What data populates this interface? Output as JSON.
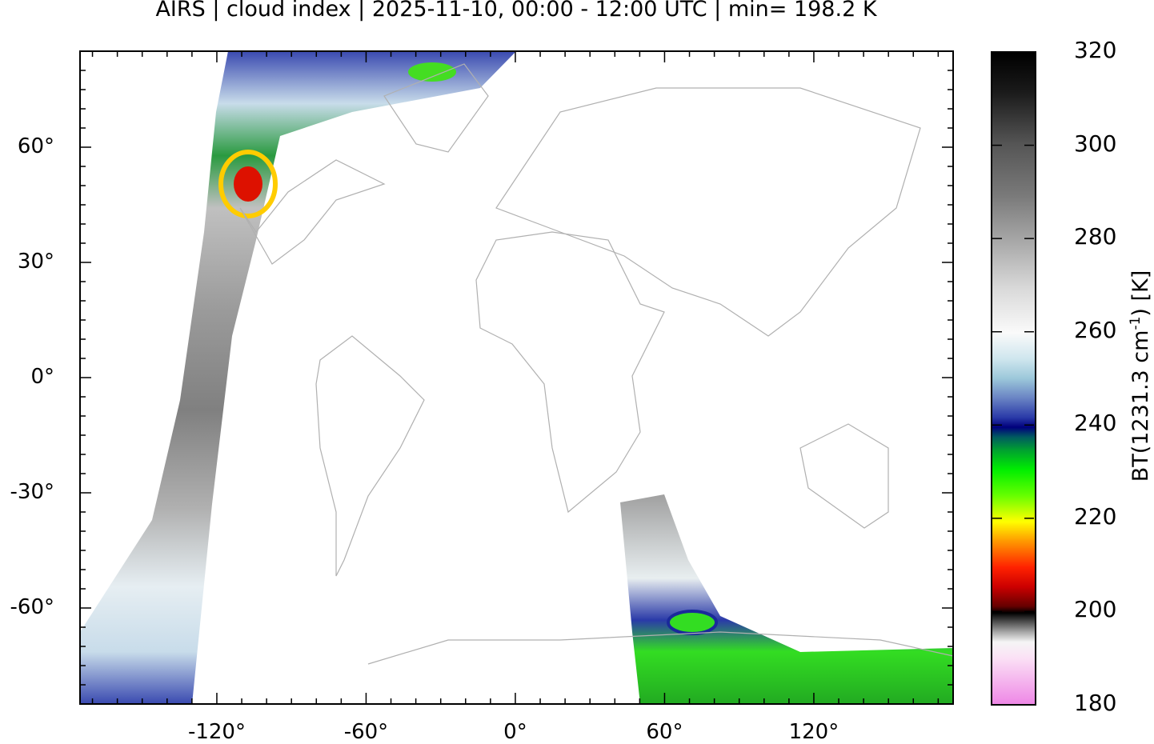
{
  "title": "AIRS | cloud index | 2025-11-10, 00:00 - 12:00 UTC | min= 198.2 K",
  "map": {
    "projection": "equirectangular",
    "lon_ticks": [
      "-120°",
      "-60°",
      "0°",
      "60°",
      "120°"
    ],
    "lon_values": [
      -120,
      -60,
      0,
      60,
      120
    ],
    "lat_ticks": [
      "60°",
      "30°",
      "0°",
      "-30°",
      "-60°"
    ],
    "lat_values": [
      60,
      30,
      0,
      -30,
      -60
    ],
    "lon_range": [
      -175,
      176
    ],
    "lat_range": [
      -85,
      85
    ],
    "coastline_color": "#b0b0b0"
  },
  "colorbar": {
    "label": "BT(1231.3 cm",
    "label_sup": "-1",
    "label_tail": ") [K]",
    "ticks": [
      "320",
      "300",
      "280",
      "260",
      "240",
      "220",
      "200",
      "180"
    ],
    "range": [
      180,
      320
    ]
  }
}
